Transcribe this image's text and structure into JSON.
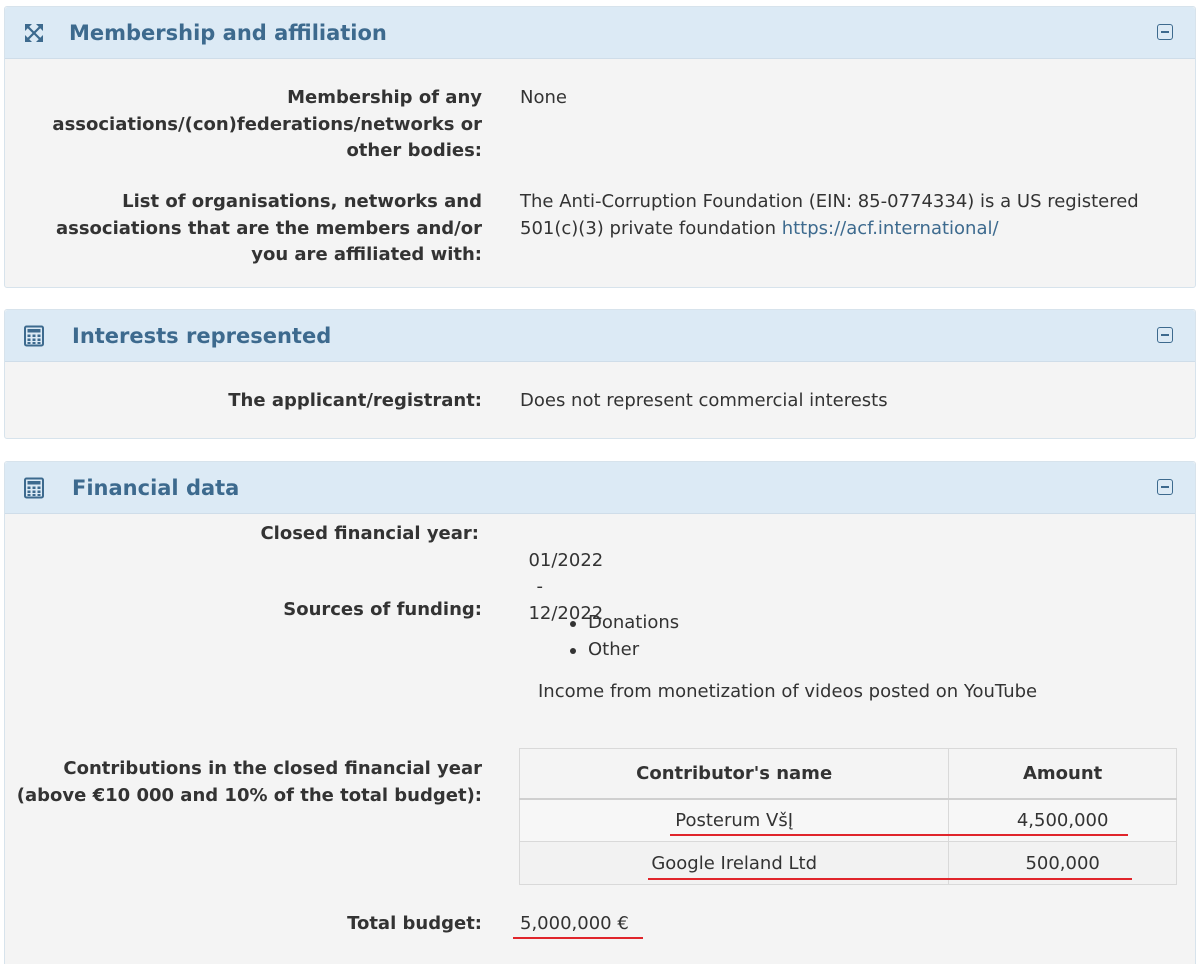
{
  "membership": {
    "title": "Membership and affiliation",
    "icon": "expand-arrows-icon",
    "rows": [
      {
        "label": "Membership of any associations/(con)federations/networks or other bodies:",
        "value": "None"
      },
      {
        "label": "List of organisations, networks and associations that are the members and/or you are affiliated with:",
        "value": "The Anti-Corruption Foundation (EIN: 85-0774334) is a US registered 501(c)(3) private foundation",
        "link": "https://acf.international/"
      }
    ]
  },
  "interests": {
    "title": "Interests represented",
    "icon": "calculator-icon",
    "label": "The applicant/registrant:",
    "value": "Does not represent commercial interests"
  },
  "financial": {
    "title": "Financial data",
    "icon": "calculator-icon",
    "closed_year_label": "Closed financial year:",
    "year_from": "01/2022",
    "year_sep": "-",
    "year_to": "12/2022",
    "sources_label": "Sources of funding:",
    "sources": [
      "Donations",
      "Other"
    ],
    "other_note": "Income from monetization of videos posted on YouTube",
    "contributions_label": "Contributions in the closed financial year (above €10 000 and 10% of the total budget):",
    "table": {
      "headers": [
        "Contributor's name",
        "Amount"
      ],
      "rows": [
        {
          "name": "Posterum VšĮ",
          "amount": "4,500,000"
        },
        {
          "name": "Google Ireland Ltd",
          "amount": "500,000"
        }
      ]
    },
    "total_label": "Total budget:",
    "total_value": "5,000,000 €"
  },
  "colors": {
    "accent": "#3d6a8e",
    "header_bg": "#dceaf5",
    "panel_bg": "#f4f4f4",
    "annotation": "#e0252b"
  }
}
